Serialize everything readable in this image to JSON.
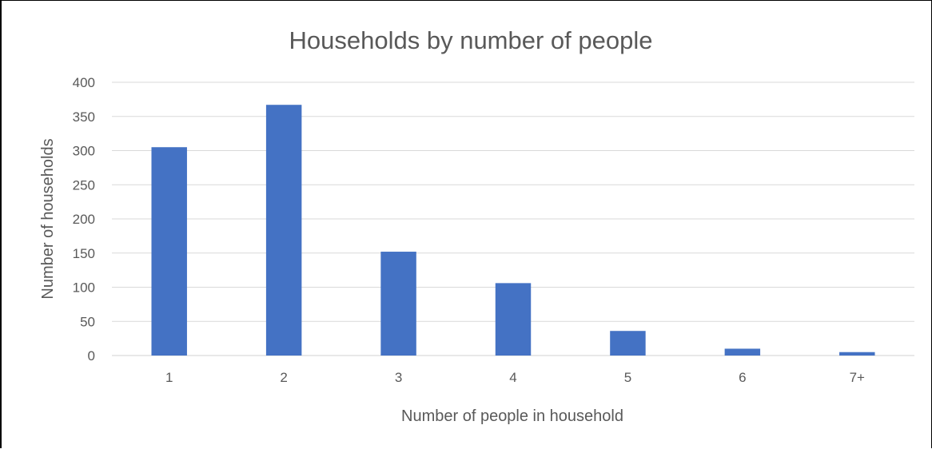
{
  "chart_data": {
    "type": "bar",
    "title": "Households by number of people",
    "xlabel": "Number of people in household",
    "ylabel": "Number of households",
    "categories": [
      "1",
      "2",
      "3",
      "4",
      "5",
      "6",
      "7+"
    ],
    "values": [
      305,
      367,
      152,
      106,
      36,
      10,
      5
    ],
    "ylim": [
      0,
      400
    ],
    "yticks": [
      "0",
      "50",
      "100",
      "150",
      "200",
      "250",
      "300",
      "350",
      "400"
    ],
    "grid": true,
    "legend": "none",
    "bar_color": "#4472C4"
  }
}
